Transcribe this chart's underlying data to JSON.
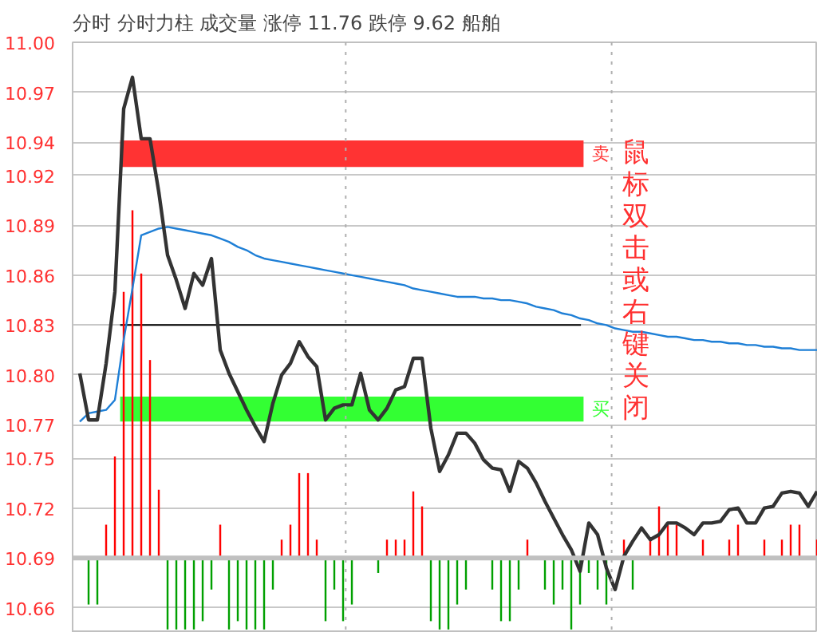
{
  "chart_data": {
    "type": "line",
    "title": "分时 分时力柱 成交量 涨停 11.76 跌停 9.62 船舶",
    "categories": [
      null,
      null,
      null,
      null,
      null,
      null,
      null,
      null,
      null,
      null,
      null,
      null,
      null,
      null,
      null,
      null,
      null,
      null,
      null,
      null,
      null,
      null,
      null,
      null,
      null,
      null,
      null,
      null,
      null,
      null,
      null,
      null,
      null,
      null,
      null,
      null,
      null,
      null,
      null,
      null,
      null,
      null,
      null,
      null,
      null,
      null,
      null,
      null,
      null,
      null,
      null,
      null,
      null,
      null,
      null,
      null,
      null,
      null,
      null,
      null,
      null,
      null,
      null,
      null,
      null,
      null,
      null,
      null,
      null,
      null,
      null,
      null,
      null,
      null,
      null,
      null,
      null,
      null,
      null,
      null,
      null,
      null,
      null,
      null,
      null
    ],
    "ylim": [
      10.645,
      11.0
    ],
    "yticks": [
      10.66,
      10.69,
      10.72,
      10.75,
      10.77,
      {
        "value": 10.8,
        "label": "10.80"
      },
      10.83,
      10.86,
      10.89,
      10.92,
      10.94,
      10.97,
      {
        "value": 11.0,
        "label": "11.00"
      }
    ],
    "tick_labels": "y",
    "grid": "y",
    "line_style": "solid",
    "series": [
      {
        "type": "bar",
        "base": [
          null,
          10.69,
          10.69,
          10.69,
          10.69,
          10.69,
          10.69,
          10.69,
          10.69,
          10.69,
          10.69,
          10.69,
          10.69,
          10.69,
          10.69,
          10.69,
          10.69,
          10.69,
          10.69,
          10.69,
          10.69,
          10.69,
          10.69,
          10.69,
          10.69,
          10.69,
          10.69,
          10.69,
          10.69,
          10.69,
          10.69,
          10.69,
          null,
          null,
          10.69,
          10.69,
          10.69,
          10.69,
          10.69,
          10.69,
          10.69,
          10.69,
          10.69,
          10.69,
          10.69,
          null,
          null,
          10.69,
          10.69,
          10.69,
          10.69,
          10.69,
          null,
          10.69,
          10.69,
          10.69,
          10.69,
          10.69,
          10.69,
          10.69,
          10.69,
          null,
          10.69,
          10.69,
          null,
          10.69,
          10.69,
          10.69,
          10.69,
          null,
          null,
          10.69,
          null,
          null,
          10.69,
          10.69,
          null,
          null,
          10.69,
          null,
          10.69,
          10.69,
          10.69,
          null,
          10.69
        ],
        "values": [
          null,
          -0.028,
          -0.028,
          0.02,
          0.061,
          0.16,
          0.209,
          0.171,
          0.119,
          0.041,
          -0.043,
          -0.043,
          -0.043,
          -0.043,
          -0.038,
          -0.019,
          0.02,
          -0.043,
          -0.038,
          -0.043,
          -0.043,
          -0.043,
          -0.019,
          0.011,
          0.02,
          0.051,
          0.051,
          0.011,
          -0.038,
          -0.019,
          -0.038,
          -0.028,
          null,
          null,
          -0.009,
          0.011,
          0.011,
          0.011,
          0.04,
          0.031,
          -0.038,
          -0.043,
          -0.043,
          -0.028,
          -0.019,
          null,
          null,
          -0.019,
          -0.038,
          -0.038,
          -0.019,
          0.011,
          null,
          -0.019,
          -0.028,
          -0.019,
          -0.043,
          -0.028,
          -0.009,
          -0.019,
          -0.028,
          null,
          0.011,
          -0.019,
          null,
          0.011,
          0.031,
          0.02,
          0.02,
          null,
          null,
          0.011,
          null,
          null,
          0.011,
          0.02,
          null,
          null,
          0.011,
          null,
          0.011,
          0.02,
          0.02,
          null,
          0.011
        ],
        "colors": [
          null,
          "#00a000",
          "#00a000",
          "#ff0000",
          "#ff0000",
          "#ff0000",
          "#ff0000",
          "#ff0000",
          "#ff0000",
          "#ff0000",
          "#00a000",
          "#00a000",
          "#00a000",
          "#00a000",
          "#00a000",
          "#00a000",
          "#ff0000",
          "#00a000",
          "#00a000",
          "#00a000",
          "#00a000",
          "#00a000",
          "#00a000",
          "#ff0000",
          "#ff0000",
          "#ff0000",
          "#ff0000",
          "#ff0000",
          "#00a000",
          "#00a000",
          "#00a000",
          "#00a000",
          null,
          null,
          "#00a000",
          "#ff0000",
          "#ff0000",
          "#ff0000",
          "#ff0000",
          "#ff0000",
          "#00a000",
          "#00a000",
          "#00a000",
          "#00a000",
          "#00a000",
          null,
          null,
          "#00a000",
          "#00a000",
          "#00a000",
          "#00a000",
          "#ff0000",
          null,
          "#00a000",
          "#00a000",
          "#00a000",
          "#00a000",
          "#00a000",
          "#00a000",
          "#00a000",
          "#00a000",
          null,
          "#ff0000",
          "#00a000",
          null,
          "#ff0000",
          "#ff0000",
          "#ff0000",
          "#ff0000",
          null,
          null,
          "#ff0000",
          null,
          null,
          "#ff0000",
          "#ff0000",
          null,
          null,
          "#ff0000",
          null,
          "#ff0000",
          "#ff0000",
          "#ff0000",
          null,
          "#ff0000"
        ]
      },
      {
        "color": "#1e7fd6",
        "values": [
          10.772,
          10.777,
          10.778,
          10.779,
          10.785,
          10.821,
          10.852,
          10.884,
          10.886,
          10.888,
          10.889,
          10.888,
          10.887,
          10.886,
          10.885,
          10.884,
          10.882,
          10.88,
          10.877,
          10.875,
          10.872,
          10.87,
          10.869,
          10.868,
          10.867,
          10.866,
          10.865,
          10.864,
          10.863,
          10.862,
          10.861,
          10.86,
          10.859,
          10.858,
          10.857,
          10.856,
          10.855,
          10.854,
          10.852,
          10.851,
          10.85,
          10.849,
          10.848,
          10.847,
          10.847,
          10.847,
          10.846,
          10.846,
          10.845,
          10.845,
          10.844,
          10.843,
          10.841,
          10.84,
          10.839,
          10.837,
          10.836,
          10.834,
          10.833,
          10.831,
          10.83,
          10.828,
          10.827,
          10.826,
          10.826,
          10.825,
          10.824,
          10.823,
          10.823,
          10.822,
          10.821,
          10.821,
          10.82,
          10.82,
          10.819,
          10.819,
          10.818,
          10.818,
          10.817,
          10.817,
          10.816,
          10.816,
          10.815,
          10.815,
          10.815
        ]
      },
      {
        "color": "#333333",
        "values": [
          10.801,
          10.773,
          10.773,
          10.807,
          10.85,
          10.96,
          10.979,
          10.942,
          10.942,
          10.91,
          10.872,
          10.857,
          10.84,
          10.861,
          10.854,
          10.87,
          10.815,
          10.801,
          10.79,
          10.779,
          10.769,
          10.76,
          10.783,
          10.8,
          10.807,
          10.82,
          10.811,
          10.805,
          10.773,
          10.78,
          10.782,
          10.782,
          10.801,
          10.779,
          10.773,
          10.78,
          10.791,
          10.793,
          10.81,
          10.81,
          10.768,
          10.742,
          10.752,
          10.765,
          10.765,
          10.759,
          10.749,
          10.744,
          10.743,
          10.73,
          10.748,
          10.744,
          10.735,
          10.724,
          10.714,
          10.704,
          10.695,
          10.682,
          10.711,
          10.704,
          10.684,
          10.671,
          10.691,
          10.7,
          10.708,
          10.701,
          10.704,
          10.711,
          10.711,
          10.708,
          10.704,
          10.711,
          10.711,
          10.712,
          10.719,
          10.72,
          10.711,
          10.711,
          10.72,
          10.721,
          10.729,
          10.73,
          10.729,
          10.721,
          10.73
        ]
      }
    ],
    "ref_lines": [
      {
        "axis": "y",
        "value": 10.69,
        "color": "#c0c0c0"
      },
      {
        "axis": "y",
        "value": 10.83,
        "color": "#000000"
      }
    ],
    "bands": [
      {
        "axis": "y",
        "from": 10.925,
        "to": 10.941,
        "label": "卖",
        "color": "#ff3333"
      },
      {
        "axis": "y",
        "from": 10.772,
        "to": 10.787,
        "label": "买",
        "color": "#33ff33"
      }
    ],
    "annotations": [
      "鼠标双击或右键关闭"
    ]
  }
}
